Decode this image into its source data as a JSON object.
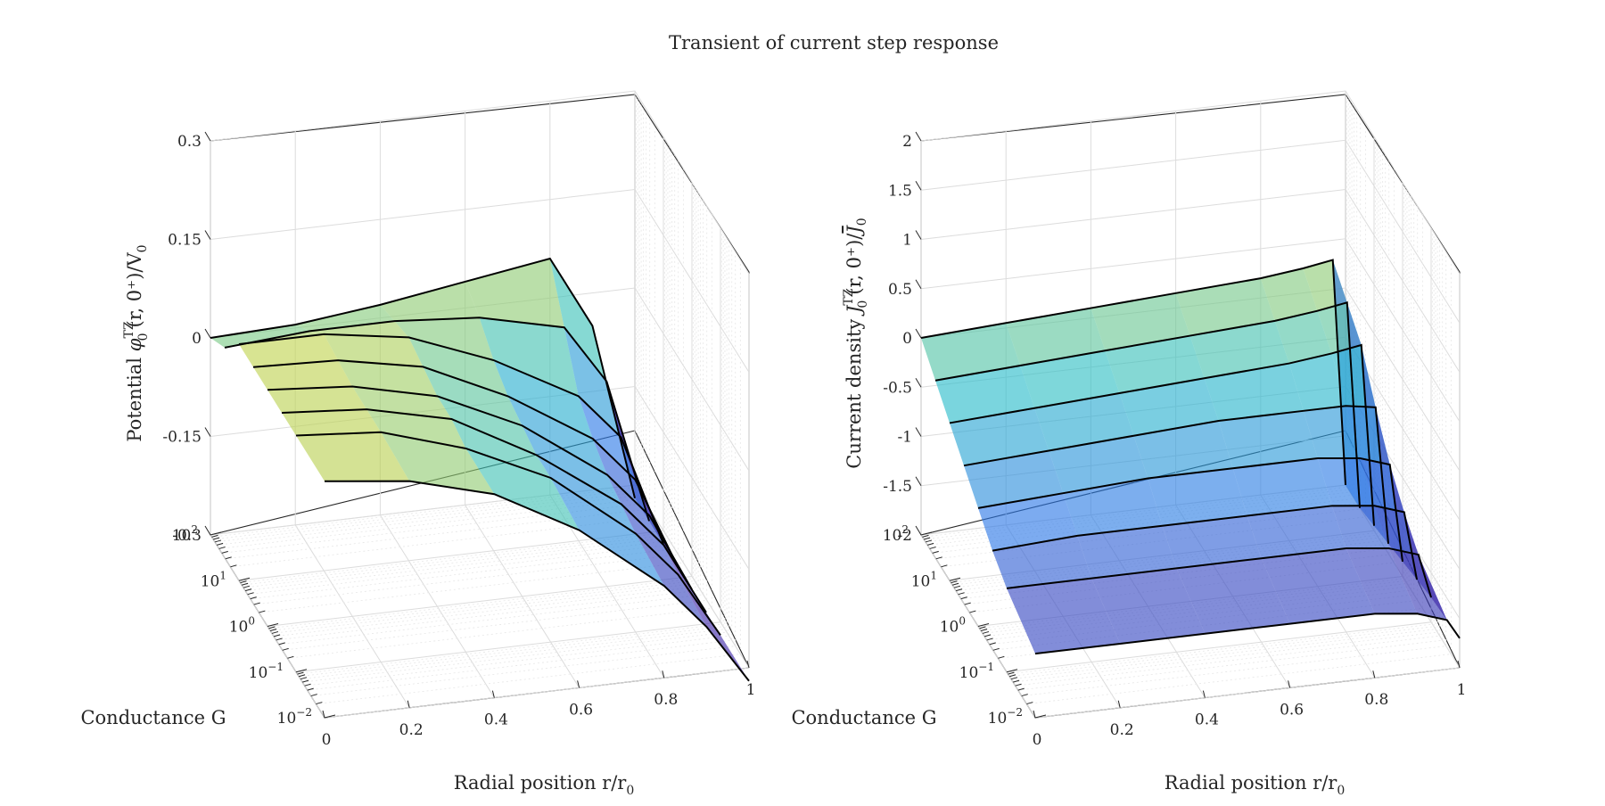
{
  "title": "Transient of current step response",
  "chart_data": [
    {
      "type": "surface",
      "zlabel_pre": "Potential ",
      "zlabel_sym": "φ",
      "zlabel_post": "(r, 0⁺)/V",
      "zlabel_sup": "TZ",
      "zlabel_sub": "0",
      "zlabel_sub2": "0",
      "xlabel": "Radial position r/r",
      "xlabel_sub": "0",
      "ylabel": "Conductance G",
      "xticks": [
        "0",
        "0.2",
        "0.4",
        "0.6",
        "0.8",
        "1"
      ],
      "yticks": [
        {
          "base": "10",
          "exp": "−2"
        },
        {
          "base": "10",
          "exp": "−1"
        },
        {
          "base": "10",
          "exp": "0"
        },
        {
          "base": "10",
          "exp": "1"
        },
        {
          "base": "10",
          "exp": "2"
        }
      ],
      "zticks": [
        "-0.3",
        "-0.15",
        "0",
        "0.15",
        "0.3"
      ],
      "xlim": [
        0,
        1
      ],
      "ylim_log10": [
        -2,
        2
      ],
      "zlim": [
        -0.3,
        0.3
      ],
      "grid": true,
      "colormap": "parula (blue → yellow)",
      "series": [
        {
          "G": 100,
          "r": [
            0,
            0.2,
            0.4,
            0.6,
            0.8,
            0.9,
            1.0
          ],
          "z": [
            0.0,
            0.005,
            0.02,
            0.04,
            0.06,
            -0.05,
            -0.32
          ]
        },
        {
          "G": 31.6,
          "r": [
            0,
            0.2,
            0.4,
            0.6,
            0.8,
            0.9,
            1.0
          ],
          "z": [
            0.02,
            0.03,
            0.03,
            0.02,
            -0.01,
            -0.1,
            -0.32
          ]
        },
        {
          "G": 10,
          "r": [
            0,
            0.2,
            0.4,
            0.6,
            0.8,
            0.9,
            1.0
          ],
          "z": [
            0.06,
            0.06,
            0.04,
            -0.01,
            -0.08,
            -0.15,
            -0.32
          ]
        },
        {
          "G": 3.16,
          "r": [
            0,
            0.2,
            0.4,
            0.6,
            0.8,
            0.9,
            1.0
          ],
          "z": [
            0.06,
            0.055,
            0.03,
            -0.03,
            -0.11,
            -0.18,
            -0.32
          ]
        },
        {
          "G": 1,
          "r": [
            0,
            0.2,
            0.4,
            0.6,
            0.8,
            0.9,
            1.0
          ],
          "z": [
            0.06,
            0.05,
            0.02,
            -0.04,
            -0.13,
            -0.2,
            -0.32
          ]
        },
        {
          "G": 0.316,
          "r": [
            0,
            0.2,
            0.4,
            0.6,
            0.8,
            0.9,
            1.0
          ],
          "z": [
            0.06,
            0.05,
            0.02,
            -0.05,
            -0.14,
            -0.21,
            -0.32
          ]
        },
        {
          "G": 0.1,
          "r": [
            0,
            0.2,
            0.4,
            0.6,
            0.8,
            0.9,
            1.0
          ],
          "z": [
            0.06,
            0.05,
            0.01,
            -0.05,
            -0.15,
            -0.22,
            -0.32
          ]
        },
        {
          "G": 0.01,
          "r": [
            0,
            0.2,
            0.4,
            0.6,
            0.8,
            0.9,
            1.0
          ],
          "z": [
            0.06,
            0.045,
            0.01,
            -0.06,
            -0.16,
            -0.23,
            -0.32
          ]
        }
      ]
    },
    {
      "type": "surface",
      "zlabel_pre": "Current density ",
      "zlabel_sym": "J",
      "zlabel_post": "(r, 0⁺)/",
      "zlabel_sup": "TZ",
      "zlabel_sub": "0",
      "zlabel_bar": "J",
      "zlabel_sub2": "0",
      "xlabel": "Radial position r/r",
      "xlabel_sub": "0",
      "ylabel": "Conductance G",
      "xticks": [
        "0",
        "0.2",
        "0.4",
        "0.6",
        "0.8",
        "1"
      ],
      "yticks": [
        {
          "base": "10",
          "exp": "−2"
        },
        {
          "base": "10",
          "exp": "−1"
        },
        {
          "base": "10",
          "exp": "0"
        },
        {
          "base": "10",
          "exp": "1"
        },
        {
          "base": "10",
          "exp": "2"
        }
      ],
      "zticks": [
        "-2",
        "-1.5",
        "-1",
        "-0.5",
        "0",
        "0.5",
        "1",
        "1.5",
        "2"
      ],
      "xlim": [
        0,
        1
      ],
      "ylim_log10": [
        -2,
        2
      ],
      "zlim": [
        -2,
        2
      ],
      "grid": true,
      "colormap": "parula (blue → yellow)",
      "series": [
        {
          "G": 100,
          "r": [
            0,
            0.2,
            0.4,
            0.6,
            0.8,
            0.9,
            0.97,
            1.0
          ],
          "z": [
            0.0,
            0.05,
            0.1,
            0.15,
            0.2,
            0.25,
            0.3,
            -2.0
          ]
        },
        {
          "G": 31.6,
          "r": [
            0,
            0.2,
            0.4,
            0.6,
            0.8,
            0.9,
            0.97,
            1.0
          ],
          "z": [
            -0.2,
            -0.15,
            -0.1,
            -0.05,
            0.0,
            0.05,
            0.1,
            -2.0
          ]
        },
        {
          "G": 10,
          "r": [
            0,
            0.2,
            0.4,
            0.6,
            0.8,
            0.9,
            0.97,
            1.0
          ],
          "z": [
            -0.4,
            -0.35,
            -0.3,
            -0.25,
            -0.2,
            -0.15,
            -0.1,
            -1.95
          ]
        },
        {
          "G": 3.16,
          "r": [
            0,
            0.2,
            0.4,
            0.6,
            0.8,
            0.9,
            0.97,
            1.0
          ],
          "z": [
            -0.6,
            -0.55,
            -0.5,
            -0.45,
            -0.45,
            -0.45,
            -0.5,
            -1.9
          ]
        },
        {
          "G": 1,
          "r": [
            0,
            0.2,
            0.4,
            0.6,
            0.8,
            0.9,
            0.97,
            1.0
          ],
          "z": [
            -0.8,
            -0.75,
            -0.7,
            -0.7,
            -0.7,
            -0.75,
            -0.85,
            -1.85
          ]
        },
        {
          "G": 0.316,
          "r": [
            0,
            0.2,
            0.4,
            0.6,
            0.8,
            0.9,
            0.97,
            1.0
          ],
          "z": [
            -1.0,
            -0.95,
            -0.95,
            -0.95,
            -0.95,
            -1.0,
            -1.1,
            -1.8
          ]
        },
        {
          "G": 0.1,
          "r": [
            0,
            0.2,
            0.4,
            0.6,
            0.8,
            0.9,
            0.97,
            1.0
          ],
          "z": [
            -1.15,
            -1.15,
            -1.15,
            -1.15,
            -1.15,
            -1.2,
            -1.3,
            -1.75
          ]
        },
        {
          "G": 0.01,
          "r": [
            0,
            0.2,
            0.4,
            0.6,
            0.8,
            0.9,
            0.97,
            1.0
          ],
          "z": [
            -1.35,
            -1.35,
            -1.35,
            -1.35,
            -1.35,
            -1.4,
            -1.5,
            -1.7
          ]
        }
      ]
    }
  ]
}
